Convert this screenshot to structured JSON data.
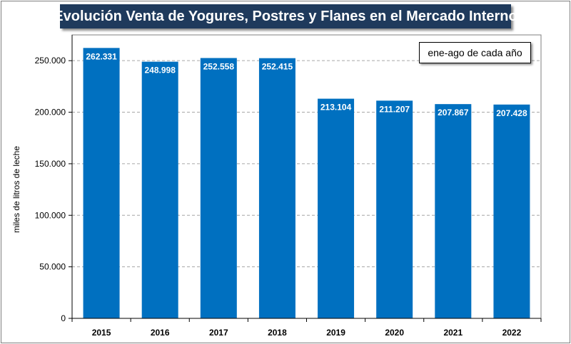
{
  "chart_data": {
    "type": "bar",
    "title": "Evolución Venta de Yogures, Postres y Flanes en el Mercado Interno",
    "note": "ene-ago de cada año",
    "xlabel": "",
    "ylabel": "miles de litros de leche",
    "categories": [
      "2015",
      "2016",
      "2017",
      "2018",
      "2019",
      "2020",
      "2021",
      "2022"
    ],
    "values": [
      262331,
      248998,
      252558,
      252415,
      213104,
      211207,
      207867,
      207428
    ],
    "value_labels": [
      "262.331",
      "248.998",
      "252.558",
      "252.415",
      "213.104",
      "211.207",
      "207.867",
      "207.428"
    ],
    "ylim": [
      0,
      275000
    ],
    "yticks": [
      0,
      50000,
      100000,
      150000,
      200000,
      250000
    ],
    "ytick_labels": [
      "0",
      "50.000",
      "100.000",
      "150.000",
      "200.000",
      "250.000"
    ],
    "grid": true,
    "colors": {
      "bar": "#0070c0",
      "title_bg": "#1f3a5c",
      "grid": "#a6a6a6"
    }
  }
}
